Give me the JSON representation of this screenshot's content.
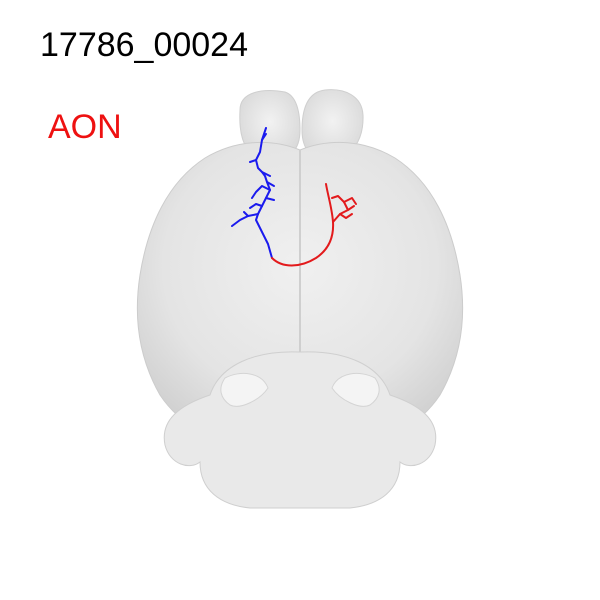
{
  "figure": {
    "id_label": "17786_00024",
    "region_label": "AON"
  },
  "colors": {
    "region_label": "#ee1111",
    "axon_red": "#e31a1c",
    "dendrite_blue": "#1a1aee",
    "brain_fill": "#e6e6e6",
    "brain_edge": "#cfcfcf"
  }
}
